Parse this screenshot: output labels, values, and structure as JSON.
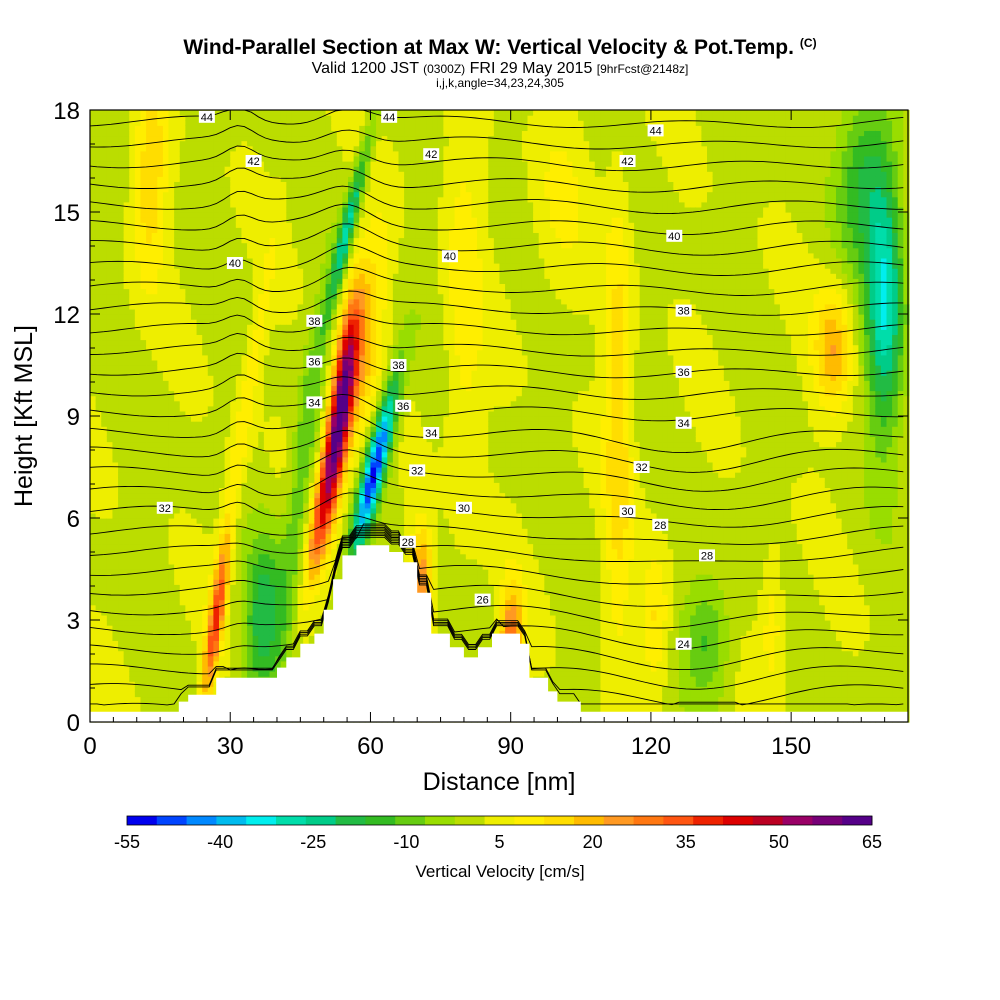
{
  "header": {
    "title": "Wind-Parallel Section at Max W: Vertical Velocity & Pot.Temp.",
    "copyright": "(C)",
    "valid_main": "Valid 1200 JST",
    "valid_zulu": "(0300Z)",
    "valid_date": "FRI 29 May 2015",
    "forecast": "[9hrFcst@2148z]",
    "indices": "i,j,k,angle=34,23,24,305"
  },
  "chart_data": {
    "type": "heatmap",
    "xlabel": "Distance [nm]",
    "ylabel": "Height [Kft MSL]",
    "xlim": [
      0,
      175
    ],
    "ylim": [
      0,
      18
    ],
    "xticks": [
      "0",
      "30",
      "60",
      "90",
      "120",
      "150"
    ],
    "yticks": [
      "0",
      "3",
      "6",
      "9",
      "12",
      "15",
      "18"
    ],
    "colorbar": {
      "label": "Vertical Velocity [cm/s]",
      "ticks": [
        "-55",
        "-40",
        "-25",
        "-10",
        "5",
        "20",
        "35",
        "50",
        "65"
      ],
      "levels": [
        -55,
        -50,
        -45,
        -40,
        -35,
        -30,
        -25,
        -20,
        -15,
        -10,
        -5,
        0,
        5,
        10,
        15,
        20,
        25,
        30,
        35,
        40,
        45,
        50,
        55,
        60,
        65
      ],
      "colors": [
        "#0000ee",
        "#0044ff",
        "#0088ff",
        "#00bbee",
        "#00eeee",
        "#00ddaa",
        "#00cc88",
        "#22bb44",
        "#33bb22",
        "#66cc11",
        "#99dd00",
        "#bbdd00",
        "#eeee00",
        "#ffee00",
        "#ffdd00",
        "#ffbb00",
        "#ff9922",
        "#ff7711",
        "#ff5511",
        "#ee2200",
        "#dd0000",
        "#bb0022",
        "#990066",
        "#770077",
        "#550088"
      ]
    },
    "terrain": [
      [
        0,
        0.3
      ],
      [
        19,
        0.3
      ],
      [
        19,
        0.6
      ],
      [
        21,
        0.6
      ],
      [
        21,
        0.8
      ],
      [
        27,
        0.8
      ],
      [
        27,
        1.3
      ],
      [
        40,
        1.3
      ],
      [
        40,
        1.6
      ],
      [
        42,
        1.6
      ],
      [
        42,
        1.9
      ],
      [
        45,
        1.9
      ],
      [
        45,
        2.3
      ],
      [
        48,
        2.3
      ],
      [
        48,
        2.6
      ],
      [
        50,
        2.6
      ],
      [
        50,
        3.3
      ],
      [
        52,
        3.3
      ],
      [
        52,
        4.2
      ],
      [
        54,
        4.2
      ],
      [
        54,
        4.9
      ],
      [
        57,
        4.9
      ],
      [
        57,
        5.2
      ],
      [
        64,
        5.2
      ],
      [
        64,
        5.0
      ],
      [
        67,
        5.0
      ],
      [
        67,
        4.7
      ],
      [
        70,
        4.7
      ],
      [
        70,
        3.8
      ],
      [
        73,
        3.8
      ],
      [
        73,
        2.6
      ],
      [
        77,
        2.6
      ],
      [
        77,
        2.2
      ],
      [
        80,
        2.2
      ],
      [
        80,
        1.9
      ],
      [
        83,
        1.9
      ],
      [
        83,
        2.2
      ],
      [
        86,
        2.2
      ],
      [
        86,
        2.6
      ],
      [
        92,
        2.6
      ],
      [
        92,
        2.3
      ],
      [
        94,
        2.3
      ],
      [
        94,
        1.3
      ],
      [
        98,
        1.3
      ],
      [
        98,
        0.9
      ],
      [
        100,
        0.9
      ],
      [
        100,
        0.6
      ],
      [
        105,
        0.6
      ],
      [
        105,
        0.3
      ],
      [
        175,
        0.3
      ]
    ],
    "theta_contours": {
      "levels": [
        24,
        26,
        28,
        30,
        32,
        34,
        36,
        38,
        40,
        42,
        44
      ],
      "labels": [
        {
          "text": "44",
          "x": 25,
          "y": 17.8
        },
        {
          "text": "44",
          "x": 64,
          "y": 17.8
        },
        {
          "text": "44",
          "x": 121,
          "y": 17.4
        },
        {
          "text": "42",
          "x": 35,
          "y": 16.5
        },
        {
          "text": "42",
          "x": 73,
          "y": 16.7
        },
        {
          "text": "42",
          "x": 115,
          "y": 16.5
        },
        {
          "text": "40",
          "x": 31,
          "y": 13.5
        },
        {
          "text": "40",
          "x": 77,
          "y": 13.7
        },
        {
          "text": "40",
          "x": 125,
          "y": 14.3
        },
        {
          "text": "38",
          "x": 48,
          "y": 11.8
        },
        {
          "text": "38",
          "x": 66,
          "y": 10.5
        },
        {
          "text": "38",
          "x": 127,
          "y": 12.1
        },
        {
          "text": "36",
          "x": 48,
          "y": 10.6
        },
        {
          "text": "36",
          "x": 67,
          "y": 9.3
        },
        {
          "text": "36",
          "x": 127,
          "y": 10.3
        },
        {
          "text": "34",
          "x": 48,
          "y": 9.4
        },
        {
          "text": "34",
          "x": 73,
          "y": 8.5
        },
        {
          "text": "34",
          "x": 127,
          "y": 8.8
        },
        {
          "text": "32",
          "x": 16,
          "y": 6.3
        },
        {
          "text": "32",
          "x": 70,
          "y": 7.4
        },
        {
          "text": "32",
          "x": 118,
          "y": 7.5
        },
        {
          "text": "30",
          "x": 80,
          "y": 6.3
        },
        {
          "text": "30",
          "x": 115,
          "y": 6.2
        },
        {
          "text": "28",
          "x": 68,
          "y": 5.3
        },
        {
          "text": "28",
          "x": 122,
          "y": 5.8
        },
        {
          "text": "28",
          "x": 132,
          "y": 4.9
        },
        {
          "text": "26",
          "x": 84,
          "y": 3.6
        },
        {
          "text": "24",
          "x": 127,
          "y": 2.3
        }
      ]
    }
  }
}
